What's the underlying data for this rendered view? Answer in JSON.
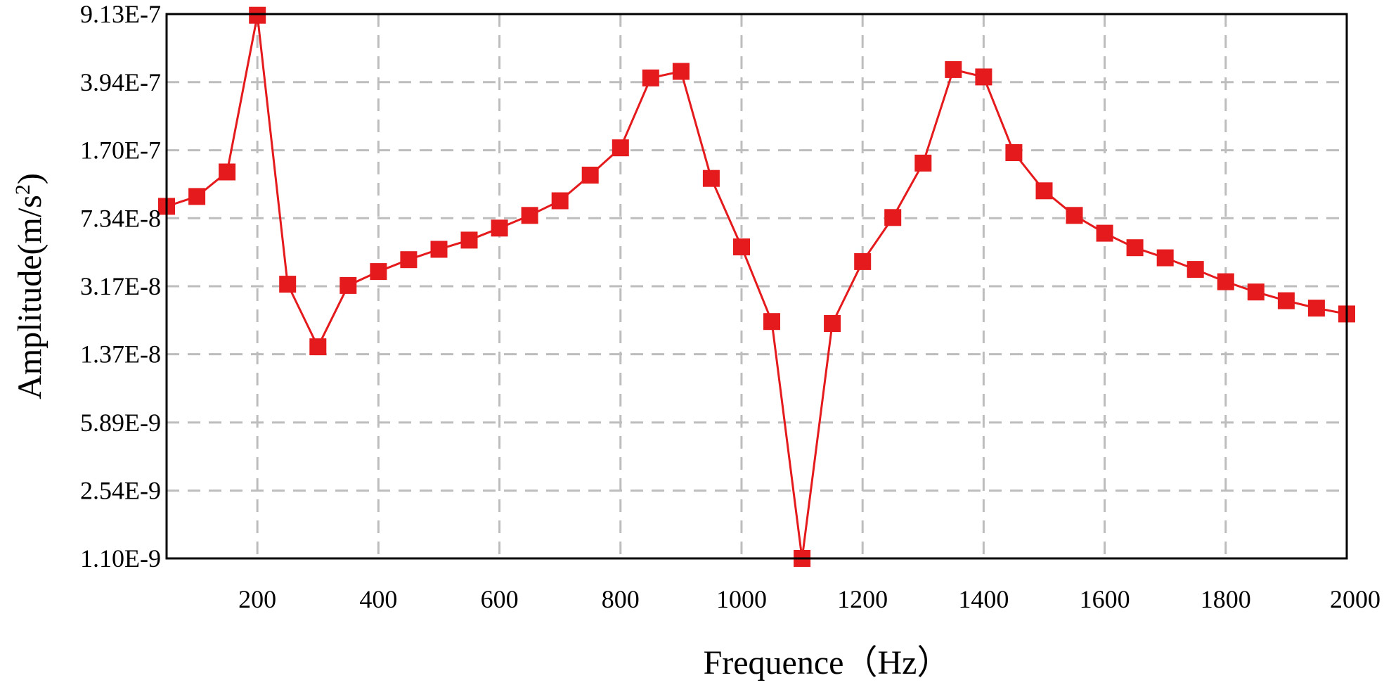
{
  "chart_data": {
    "type": "line",
    "xlabel": "Frequence（Hz）",
    "ylabel": "Amplitude(m/s²)",
    "ylabel_parts": {
      "base": "Amplitude(m/s",
      "sup": "2",
      "end": ")"
    },
    "x_range": [
      50,
      2000
    ],
    "x_ticks": [
      200,
      400,
      600,
      800,
      1000,
      1200,
      1400,
      1600,
      1800,
      2000
    ],
    "y_scale": "log",
    "y_range": [
      1.1e-09,
      9.13e-07
    ],
    "y_ticks": [
      "1.10E-9",
      "2.54E-9",
      "5.89E-9",
      "1.37E-8",
      "3.17E-8",
      "7.34E-8",
      "1.70E-7",
      "3.94E-7",
      "9.13E-7"
    ],
    "y_tick_values": [
      1.1e-09,
      2.54e-09,
      5.89e-09,
      1.37e-08,
      3.17e-08,
      7.34e-08,
      1.7e-07,
      3.94e-07,
      9.13e-07
    ],
    "grid": true,
    "series_color": "#e41a1c",
    "marker": "square",
    "series": [
      {
        "x": [
          50,
          100,
          150,
          200,
          250,
          300,
          350,
          400,
          450,
          500,
          550,
          600,
          650,
          700,
          750,
          800,
          850,
          900,
          950,
          1000,
          1050,
          1100,
          1150,
          1200,
          1250,
          1300,
          1350,
          1400,
          1450,
          1500,
          1550,
          1600,
          1650,
          1700,
          1750,
          1800,
          1850,
          1900,
          1950,
          2000
        ],
        "y": [
          8.5e-08,
          9.6e-08,
          1.3e-07,
          9e-07,
          3.25e-08,
          1.5e-08,
          3.2e-08,
          3.8e-08,
          4.4e-08,
          5e-08,
          5.6e-08,
          6.5e-08,
          7.6e-08,
          9.1e-08,
          1.25e-07,
          1.75e-07,
          4.15e-07,
          4.5e-07,
          1.2e-07,
          5.15e-08,
          2.05e-08,
          1.1e-09,
          2e-08,
          4.3e-08,
          7.4e-08,
          1.45e-07,
          4.6e-07,
          4.2e-07,
          1.65e-07,
          1.03e-07,
          7.6e-08,
          6.1e-08,
          5.1e-08,
          4.5e-08,
          3.9e-08,
          3.35e-08,
          2.95e-08,
          2.65e-08,
          2.42e-08,
          2.25e-08
        ]
      }
    ]
  }
}
